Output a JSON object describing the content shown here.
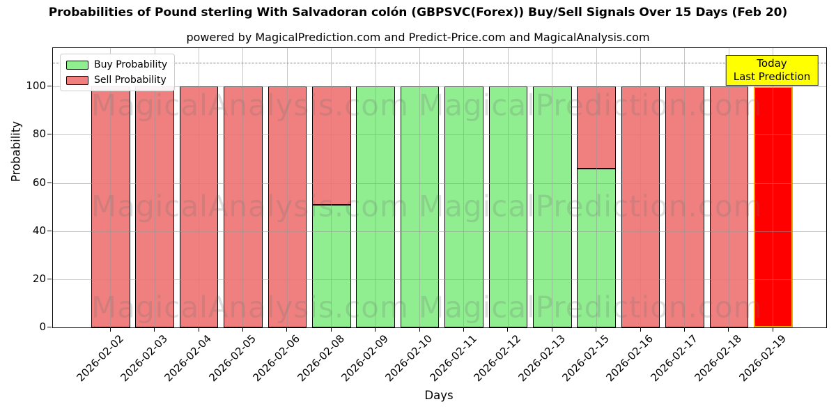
{
  "title": "Probabilities of Pound sterling With Salvadoran colón (GBPSVC(Forex)) Buy/Sell Signals Over 15 Days (Feb 20)",
  "subtitle": "powered by MagicalPrediction.com and Predict-Price.com and MagicalAnalysis.com",
  "chart_data": {
    "type": "bar",
    "stacked": true,
    "title": "Probabilities of Pound sterling With Salvadoran colón (GBPSVC(Forex)) Buy/Sell Signals Over 15 Days (Feb 20)",
    "subtitle": "powered by MagicalPrediction.com and Predict-Price.com and MagicalAnalysis.com",
    "categories": [
      "2026-02-02",
      "2026-02-03",
      "2026-02-04",
      "2026-02-05",
      "2026-02-06",
      "2026-02-08",
      "2026-02-09",
      "2026-02-10",
      "2026-02-11",
      "2026-02-12",
      "2026-02-13",
      "2026-02-15",
      "2026-02-16",
      "2026-02-17",
      "2026-02-18",
      "2026-02-19"
    ],
    "series": [
      {
        "name": "Buy Probability",
        "color": "#90ee90",
        "values": [
          0,
          0,
          0,
          0,
          0,
          51,
          100,
          100,
          100,
          100,
          100,
          66,
          0,
          0,
          0,
          0
        ]
      },
      {
        "name": "Sell Probability",
        "color": "#f08080",
        "values": [
          100,
          100,
          100,
          100,
          100,
          49,
          0,
          0,
          0,
          0,
          0,
          34,
          100,
          100,
          100,
          100
        ]
      }
    ],
    "today_bar": {
      "index": 15,
      "value": 100,
      "color": "#ff0000",
      "edge_color": "#ffa500"
    },
    "xlabel": "Days",
    "ylabel": "Probability",
    "yticks": [
      0,
      20,
      40,
      60,
      80,
      100
    ],
    "ylim": [
      0,
      116
    ],
    "dashed_line_y": 110,
    "grid": true,
    "bar_edge_color": "#000000",
    "legend": {
      "position": "top-left",
      "entries": [
        {
          "label": "Buy Probability",
          "color": "#90ee90"
        },
        {
          "label": "Sell Probability",
          "color": "#f08080"
        }
      ]
    },
    "annotation": {
      "lines": [
        "Today",
        "Last Prediction"
      ],
      "bg_color": "#ffff00",
      "border_color": "#333333"
    },
    "watermarks": {
      "left": "MagicalAnalysis.com",
      "right": "MagicalPrediction.com"
    }
  }
}
